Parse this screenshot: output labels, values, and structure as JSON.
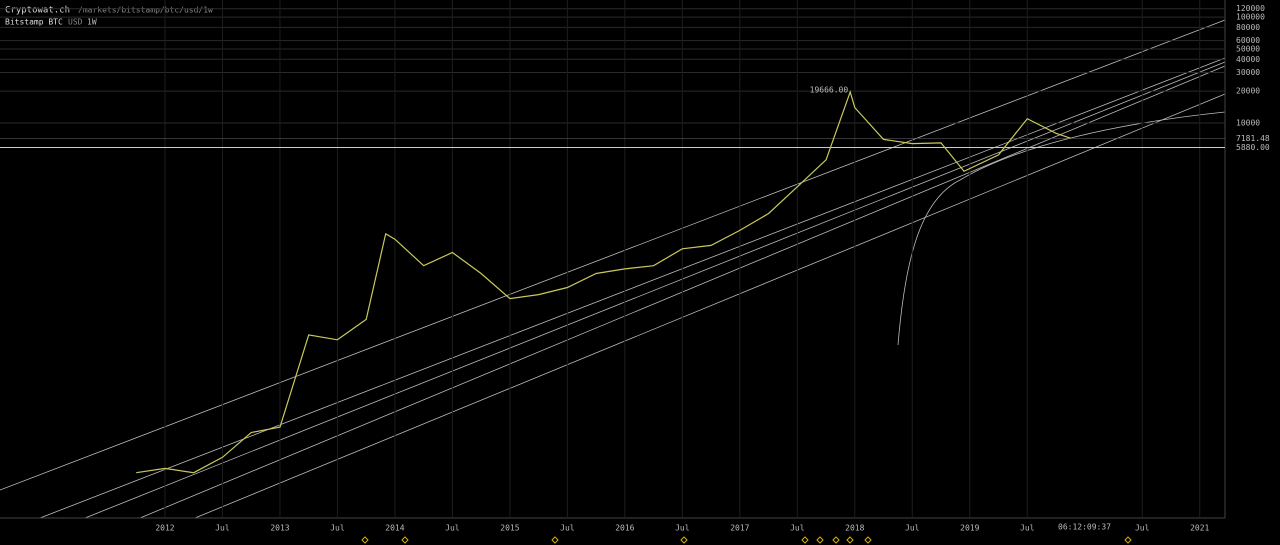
{
  "header": {
    "site": "Cryptowat.ch",
    "path": "/markets/bitstamp/btc/usd/1w",
    "market": "Bitstamp BTC",
    "quote": "USD",
    "period": "1W",
    "countdown": "06:12:09:37"
  },
  "chart_data": {
    "type": "line",
    "log_y": true,
    "grid": true,
    "color": "#c9c95a",
    "x": [
      2011.75,
      2012.0,
      2012.25,
      2012.5,
      2012.75,
      2013.0,
      2013.25,
      2013.5,
      2013.75,
      2013.92,
      2014.0,
      2014.25,
      2014.5,
      2014.75,
      2015.0,
      2015.25,
      2015.5,
      2015.75,
      2016.0,
      2016.25,
      2016.5,
      2016.75,
      2017.0,
      2017.25,
      2017.5,
      2017.75,
      2017.96,
      2018.0,
      2018.25,
      2018.5,
      2018.75,
      2018.95,
      2019.25,
      2019.5,
      2019.75,
      2019.88
    ],
    "values": [
      5,
      5.5,
      5,
      7,
      12,
      13.5,
      100,
      90,
      140,
      900,
      800,
      450,
      600,
      380,
      220,
      240,
      280,
      380,
      420,
      450,
      650,
      700,
      970,
      1400,
      2500,
      4500,
      19666,
      14000,
      7000,
      6400,
      6500,
      3500,
      5000,
      11000,
      8000,
      7181.48
    ],
    "xlim": [
      2010.565,
      2021.22
    ],
    "ylim": [
      1.87,
      145000
    ],
    "xticks": [
      2012,
      {
        "value": 2012.5,
        "label": "Jul"
      },
      2013,
      {
        "value": 2013.5,
        "label": "Jul"
      },
      2014,
      {
        "value": 2014.5,
        "label": "Jul"
      },
      2015,
      {
        "value": 2015.5,
        "label": "Jul"
      },
      2016,
      {
        "value": 2016.5,
        "label": "Jul"
      },
      2017,
      {
        "value": 2017.5,
        "label": "Jul"
      },
      2018,
      {
        "value": 2018.5,
        "label": "Jul"
      },
      2019,
      {
        "value": 2019.5,
        "label": "Jul"
      },
      {
        "value": 2020.5,
        "label": "Jul"
      },
      2021
    ],
    "yticks": [
      120000,
      100000,
      80000,
      60000,
      50000,
      40000,
      30000,
      20000,
      10000
    ],
    "annotations": [
      {
        "value": 19666,
        "label": "19666.00"
      }
    ],
    "levels": [
      {
        "value": 7181.48,
        "label": "7181.48"
      },
      {
        "value": 5880,
        "label": "5880.00"
      }
    ]
  }
}
